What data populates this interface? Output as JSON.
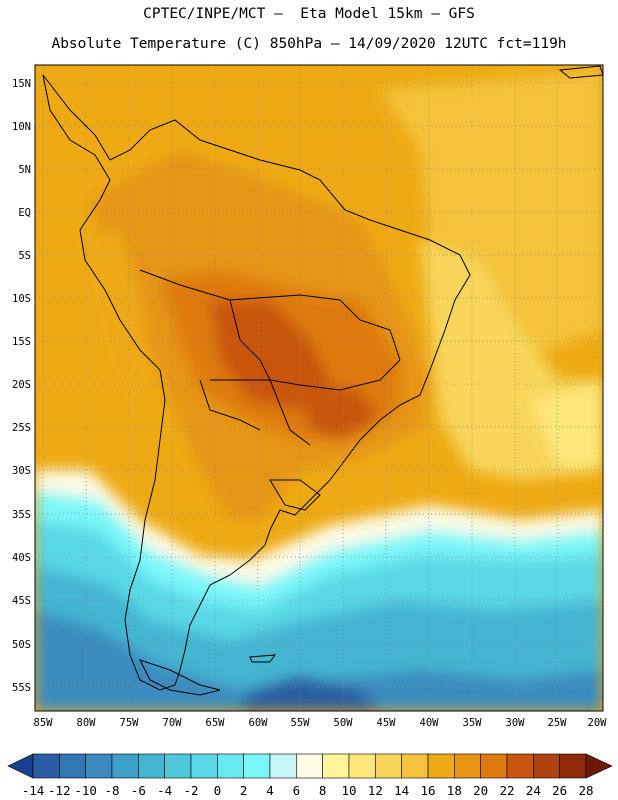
{
  "header": {
    "line1": "CPTEC/INPE/MCT –  Eta Model 15km – GFS",
    "line2": "Absolute Temperature (C) 850hPa – 14/09/2020 12UTC fct=119h"
  },
  "map": {
    "lat_labels": [
      "15N",
      "10N",
      "5N",
      "EQ",
      "5S",
      "10S",
      "15S",
      "20S",
      "25S",
      "30S",
      "35S",
      "40S",
      "45S",
      "50S",
      "55S"
    ],
    "lon_labels": [
      "85W",
      "80W",
      "75W",
      "70W",
      "65W",
      "60W",
      "55W",
      "50W",
      "45W",
      "40W",
      "35W",
      "30W",
      "25W",
      "20W"
    ]
  },
  "colorbar": {
    "labels": [
      "-14",
      "-12",
      "-10",
      "-8",
      "-6",
      "-4",
      "-2",
      "0",
      "2",
      "4",
      "6",
      "8",
      "10",
      "12",
      "14",
      "16",
      "18",
      "20",
      "22",
      "24",
      "26",
      "28"
    ],
    "colors": [
      "#1b3f8f",
      "#2a5da3",
      "#3276b2",
      "#3b8bbf",
      "#3ea0c8",
      "#44b5d1",
      "#4fc8dc",
      "#5ad8e7",
      "#6ae8f0",
      "#7af7f9",
      "#c8f5f8",
      "#fdfbe6",
      "#fff59a",
      "#fde77a",
      "#f8d55a",
      "#f4c23b",
      "#eeaa14",
      "#e69512",
      "#de7a10",
      "#c95510",
      "#b0420e",
      "#8e2a0a",
      "#6e1a0a"
    ]
  }
}
